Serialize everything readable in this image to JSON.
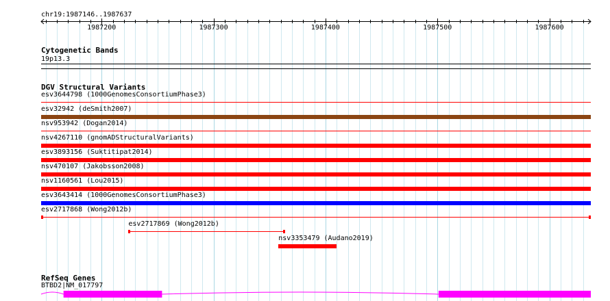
{
  "ruler": {
    "position_label": "chr19:1987146..1987637",
    "start": 1987146,
    "end": 1987637,
    "ticks": [
      "1987200",
      "1987300",
      "1987400",
      "1987500",
      "1987600"
    ]
  },
  "tracks": {
    "cytoband": {
      "title": "Cytogenetic Bands",
      "band": "19p13.3"
    },
    "dgv": {
      "title": "DGV Structural Variants",
      "variants": [
        {
          "label": "esv3644798 (1000GenomesConsortiumPhase3)",
          "start": 1987146,
          "end": 1987637,
          "color": "#ff0000",
          "style": "thin"
        },
        {
          "label": "esv32942 (deSmith2007)",
          "start": 1987146,
          "end": 1987637,
          "color": "#8b4513",
          "style": "thick"
        },
        {
          "label": "nsv953942 (Dogan2014)",
          "start": 1987146,
          "end": 1987637,
          "color": "#ff0000",
          "style": "thin"
        },
        {
          "label": "nsv4267110 (gnomADStructuralVariants)",
          "start": 1987146,
          "end": 1987637,
          "color": "#ff0000",
          "style": "thick"
        },
        {
          "label": "esv3893156 (Suktitipat2014)",
          "start": 1987146,
          "end": 1987637,
          "color": "#ff0000",
          "style": "thick"
        },
        {
          "label": "nsv470107 (Jakobsson2008)",
          "start": 1987146,
          "end": 1987637,
          "color": "#ff0000",
          "style": "thick"
        },
        {
          "label": "nsv1160561 (Lou2015)",
          "start": 1987146,
          "end": 1987637,
          "color": "#ff0000",
          "style": "thick"
        },
        {
          "label": "esv3643414 (1000GenomesConsortiumPhase3)",
          "start": 1987146,
          "end": 1987637,
          "color": "#0000ff",
          "style": "thick"
        },
        {
          "label": "esv2717868 (Wong2012b)",
          "start": 1987146,
          "end": 1987637,
          "color": "#ff0000",
          "style": "capped"
        }
      ],
      "extra_variants": [
        {
          "label": "esv2717869 (Wong2012b)",
          "start": 1987224,
          "end": 1987364,
          "color": "#ff0000",
          "style": "capped"
        },
        {
          "label": "nsv3353479 (Audano2019)",
          "start": 1987358,
          "end": 1987410,
          "color": "#ff0000",
          "style": "thick"
        }
      ]
    },
    "refseq": {
      "title": "RefSeq Genes",
      "gene_label": "BTBD2|NM_017797",
      "color": "#ff00ff",
      "exons": [
        [
          1987166,
          1987254
        ],
        [
          1987501,
          1987637
        ]
      ]
    }
  }
}
